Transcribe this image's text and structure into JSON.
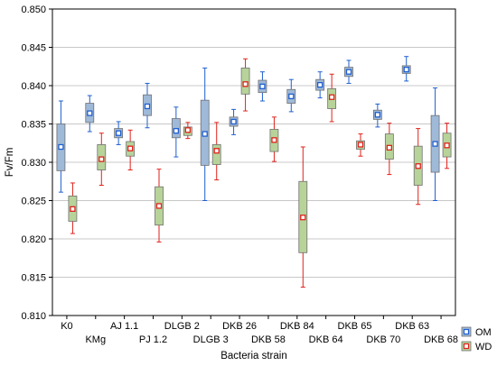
{
  "chart_data": {
    "type": "box",
    "xlabel": "Bacteria strain",
    "ylabel": "Fv/Fm",
    "ylim": [
      0.81,
      0.85
    ],
    "yticks": [
      "0.810",
      "0.815",
      "0.820",
      "0.825",
      "0.830",
      "0.835",
      "0.840",
      "0.845",
      "0.850"
    ],
    "grid": true,
    "legend_position": "bottom-right",
    "categories": [
      "K0",
      "KMg",
      "AJ 1.1",
      "PJ 1.2",
      "DLGB 2",
      "DLGB 3",
      "DKB 26",
      "DKB 58",
      "DKB 84",
      "DKB 64",
      "DKB 65",
      "DKB 70",
      "DKB 63",
      "DKB 68"
    ],
    "series": [
      {
        "name": "OM",
        "color": "#1f5fd0",
        "box_fill": "#9fb9d8",
        "median": [
          0.832,
          0.8364,
          0.8338,
          0.8373,
          0.8341,
          0.8337,
          0.8353,
          0.8399,
          0.8386,
          0.8401,
          0.8418,
          0.8362,
          0.8421,
          0.8324
        ],
        "q1": [
          0.8289,
          0.8352,
          0.8332,
          0.8361,
          0.8332,
          0.8296,
          0.8347,
          0.8391,
          0.8377,
          0.8394,
          0.8412,
          0.8356,
          0.8416,
          0.8287
        ],
        "q3": [
          0.835,
          0.8377,
          0.8344,
          0.8388,
          0.8357,
          0.8381,
          0.8359,
          0.8407,
          0.8395,
          0.8408,
          0.8424,
          0.8368,
          0.8426,
          0.8361
        ],
        "min": [
          0.8261,
          0.834,
          0.8323,
          0.8345,
          0.8307,
          0.825,
          0.8336,
          0.838,
          0.8366,
          0.8384,
          0.8403,
          0.8346,
          0.8406,
          0.825
        ],
        "max": [
          0.838,
          0.8387,
          0.8353,
          0.8403,
          0.8372,
          0.8423,
          0.8369,
          0.8418,
          0.8408,
          0.8418,
          0.8433,
          0.8376,
          0.8438,
          0.8397
        ]
      },
      {
        "name": "WD",
        "color": "#e0221b",
        "box_fill": "#b8d39a",
        "median": [
          0.8239,
          0.8304,
          0.8318,
          0.8243,
          0.8342,
          0.8315,
          0.8402,
          0.8329,
          0.8228,
          0.8385,
          0.8323,
          0.8319,
          0.8295,
          0.8322
        ],
        "q1": [
          0.8223,
          0.829,
          0.8308,
          0.8218,
          0.8335,
          0.8297,
          0.8389,
          0.8314,
          0.8182,
          0.837,
          0.8317,
          0.8304,
          0.827,
          0.8307
        ],
        "q3": [
          0.8256,
          0.8323,
          0.8327,
          0.8268,
          0.8346,
          0.8323,
          0.8423,
          0.8343,
          0.8275,
          0.8396,
          0.8328,
          0.8337,
          0.8321,
          0.8338
        ],
        "min": [
          0.8207,
          0.827,
          0.829,
          0.8196,
          0.8331,
          0.8277,
          0.8367,
          0.8301,
          0.8137,
          0.8353,
          0.8308,
          0.8284,
          0.8245,
          0.8292
        ],
        "max": [
          0.8273,
          0.8338,
          0.8342,
          0.8291,
          0.8352,
          0.8352,
          0.8435,
          0.8359,
          0.832,
          0.8415,
          0.8337,
          0.8351,
          0.8344,
          0.8351
        ]
      }
    ]
  }
}
